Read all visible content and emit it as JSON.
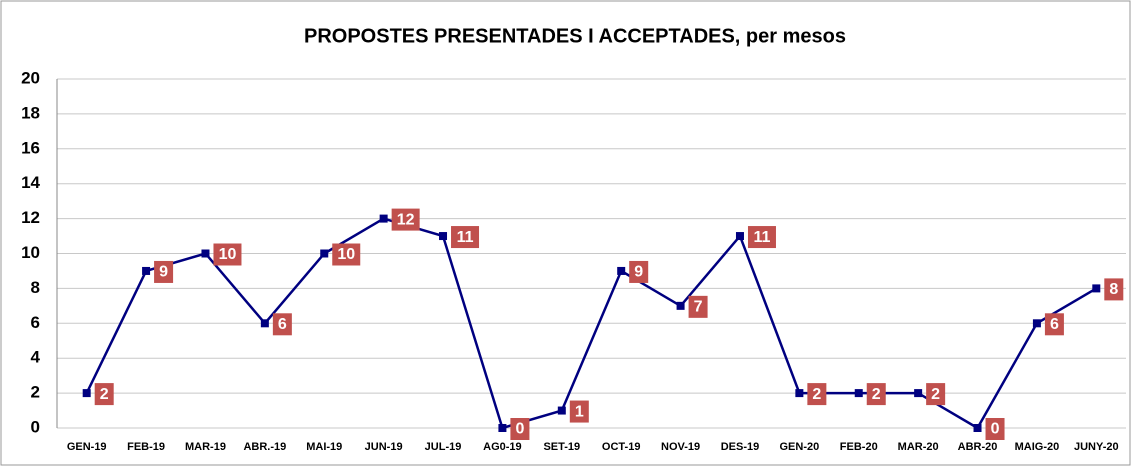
{
  "chart_data": {
    "type": "line",
    "title": "PROPOSTES PRESENTADES I ACCEPTADES, per mesos",
    "categories": [
      "GEN-19",
      "FEB-19",
      "MAR-19",
      "ABR.-19",
      "MAI-19",
      "JUN-19",
      "JUL-19",
      "AG0-19",
      "SET-19",
      "OCT-19",
      "NOV-19",
      "DES-19",
      "GEN-20",
      "FEB-20",
      "MAR-20",
      "ABR-20",
      "MAIG-20",
      "JUNY-20"
    ],
    "values": [
      2,
      9,
      10,
      6,
      10,
      12,
      11,
      0,
      1,
      9,
      7,
      11,
      2,
      2,
      2,
      0,
      6,
      8
    ],
    "color": "#000080",
    "label_color": "#c0504d",
    "ylim": [
      0,
      20
    ],
    "yticks": [
      0,
      2,
      4,
      6,
      8,
      10,
      12,
      14,
      16,
      18,
      20
    ],
    "grid": true
  }
}
